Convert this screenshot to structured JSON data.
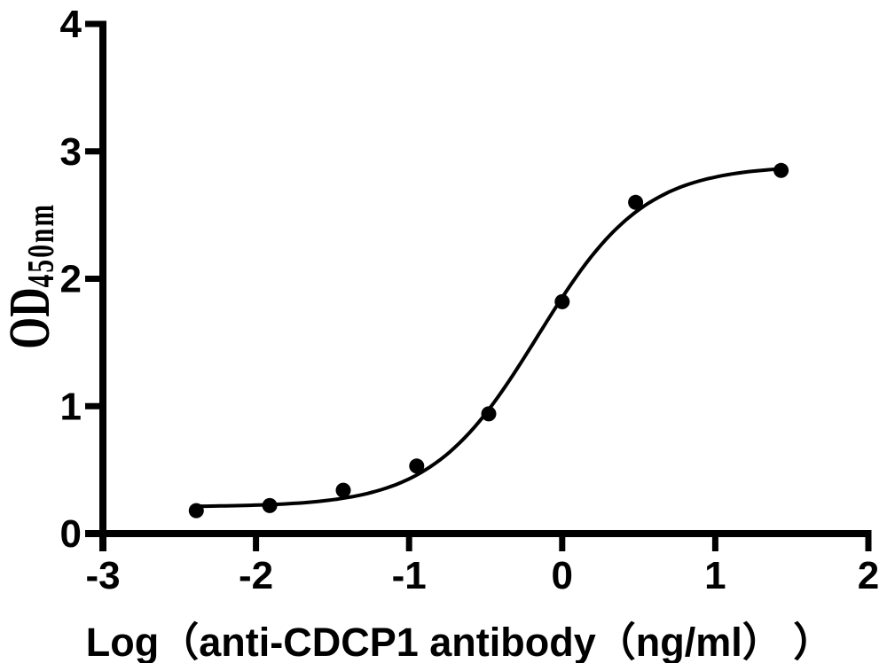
{
  "chart_data": {
    "type": "scatter",
    "title": "",
    "xlabel": "Log（anti-CDCP1 antibody（ng/ml） ）",
    "ylabel_main": "OD",
    "ylabel_subscript": "450nm",
    "x": [
      -2.39,
      -1.91,
      -1.43,
      -0.95,
      -0.48,
      0,
      0.48,
      1.43
    ],
    "y": [
      0.18,
      0.22,
      0.34,
      0.53,
      0.94,
      1.82,
      2.6,
      2.85
    ],
    "xlim": [
      -3,
      2
    ],
    "ylim": [
      0,
      4
    ],
    "x_ticks": [
      "-3",
      "-2",
      "-1",
      "0",
      "1",
      "2"
    ],
    "x_tick_values": [
      -3,
      -2,
      -1,
      0,
      1,
      2
    ],
    "y_ticks": [
      "0",
      "1",
      "2",
      "3",
      "4"
    ],
    "y_tick_values": [
      0,
      1,
      2,
      3,
      4
    ],
    "grid": false,
    "legend": false,
    "curve_fit": {
      "model": "4PL-sigmoid",
      "bottom": 0.21,
      "top": 2.89,
      "logEC50": -0.16,
      "hill": 1.25,
      "x_start": -2.39,
      "x_end": 1.43
    },
    "colors": {
      "points": "#000000",
      "curve": "#000000",
      "axis": "#000000",
      "tick_text": "#000000",
      "background": "#ffffff"
    }
  }
}
